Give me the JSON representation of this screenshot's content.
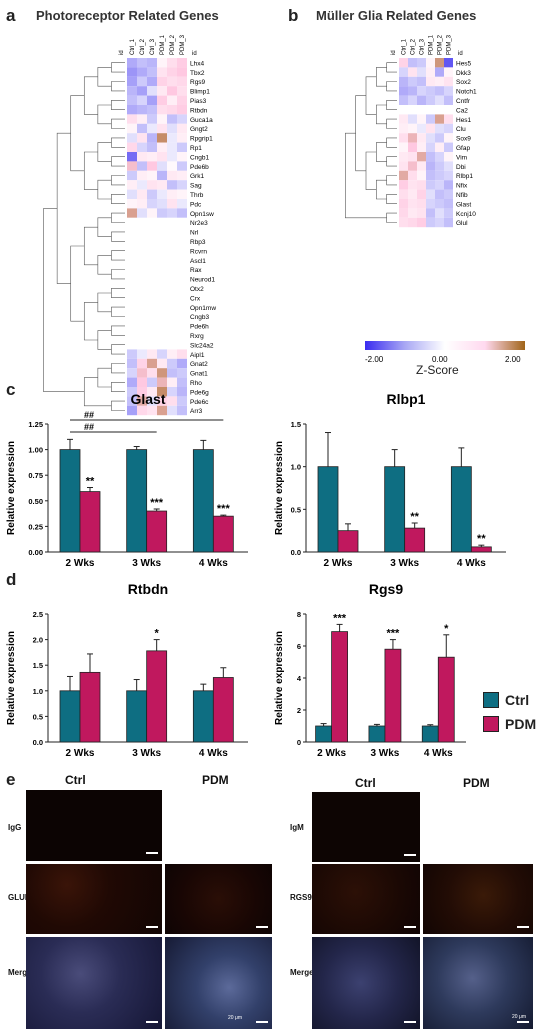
{
  "panels": {
    "a": {
      "letter": "a",
      "title": "Photoreceptor Related Genes"
    },
    "b": {
      "letter": "b",
      "title": "Müller Glia Related Genes"
    },
    "c": {
      "letter": "c"
    },
    "d": {
      "letter": "d"
    },
    "e": {
      "letter": "e"
    }
  },
  "heatmap_a": {
    "id_label": "id",
    "samples": [
      "Ctrl_1",
      "Ctrl_2",
      "Ctrl_3",
      "PDM_1",
      "PDM_2",
      "PDM_3"
    ],
    "genes": [
      "Lhx4",
      "Tbx2",
      "Rgs9",
      "Blimp1",
      "Pias3",
      "Rtbdn",
      "Guca1a",
      "Gngt2",
      "Rpgrip1",
      "Rp1",
      "Cngb1",
      "Pde6b",
      "Grk1",
      "Sag",
      "Thrb",
      "Pdc",
      "Opn1sw",
      "Nr2e3",
      "Nrl",
      "Rbp3",
      "Rcvrn",
      "Ascl1",
      "Rax",
      "Neurod1",
      "Otx2",
      "Crx",
      "Opn1mw",
      "Cngb3",
      "Pde6h",
      "Rxrg",
      "Slc24a2",
      "Aipl1",
      "Gnat2",
      "Gnat1",
      "Rho",
      "Pde6g",
      "Pde6c",
      "Arr3"
    ],
    "values": [
      [
        -0.8,
        -0.6,
        -0.7,
        0.2,
        0.6,
        0.9
      ],
      [
        -1.0,
        -0.8,
        -0.6,
        0.5,
        0.8,
        1.0
      ],
      [
        -0.9,
        -0.5,
        -0.8,
        0.8,
        0.6,
        0.7
      ],
      [
        -0.7,
        -0.9,
        -0.3,
        0.4,
        1.0,
        0.6
      ],
      [
        -0.6,
        -0.4,
        -0.9,
        0.9,
        0.3,
        0.8
      ],
      [
        -0.8,
        -0.7,
        -0.6,
        0.6,
        0.7,
        0.9
      ],
      [
        0.6,
        0.3,
        -0.5,
        0.2,
        -0.6,
        -0.4
      ],
      [
        0.2,
        -0.6,
        -0.2,
        0.5,
        -0.3,
        0.4
      ],
      [
        -0.3,
        0.5,
        -0.7,
        1.6,
        -0.2,
        0.3
      ],
      [
        0.7,
        -0.4,
        -0.6,
        0.3,
        -0.2,
        -0.5
      ],
      [
        -1.4,
        0.4,
        0.3,
        0.5,
        -0.2,
        0.2
      ],
      [
        1.1,
        -0.6,
        1.0,
        -0.3,
        0.1,
        -0.5
      ],
      [
        -0.5,
        0.3,
        0.2,
        -0.7,
        0.4,
        0.3
      ],
      [
        0.3,
        -0.2,
        0.5,
        0.4,
        -0.6,
        -0.4
      ],
      [
        -0.3,
        0.4,
        -0.5,
        -0.2,
        0.3,
        0.2
      ],
      [
        0.2,
        0.3,
        -0.4,
        -0.3,
        0.5,
        -0.2
      ],
      [
        1.4,
        -0.3,
        0.2,
        -0.5,
        -0.4,
        -0.6
      ],
      [
        0,
        0,
        0,
        0,
        0,
        0
      ],
      [
        0,
        0,
        0,
        0,
        0,
        0
      ],
      [
        0,
        0,
        0,
        0,
        0,
        0
      ],
      [
        0,
        0,
        0,
        0,
        0,
        0
      ],
      [
        0,
        0,
        0,
        0,
        0,
        0
      ],
      [
        0,
        0,
        0,
        0,
        0,
        0
      ],
      [
        0,
        0,
        0,
        0,
        0,
        0
      ],
      [
        0,
        0,
        0,
        0,
        0,
        0
      ],
      [
        0,
        0,
        0,
        0,
        0,
        0
      ],
      [
        0,
        0,
        0,
        0,
        0,
        0
      ],
      [
        0,
        0,
        0,
        0,
        0,
        0
      ],
      [
        0,
        0,
        0,
        0,
        0,
        0
      ],
      [
        0,
        0,
        0,
        0,
        0,
        0
      ],
      [
        0,
        0,
        0,
        0,
        0,
        0
      ],
      [
        -0.5,
        -0.2,
        0.4,
        -0.4,
        0.3,
        0.6
      ],
      [
        -0.6,
        0.8,
        1.4,
        0.4,
        -0.5,
        -0.8
      ],
      [
        -0.4,
        1.1,
        0.6,
        1.5,
        -0.6,
        -0.5
      ],
      [
        -0.8,
        1.0,
        -0.5,
        1.2,
        0.3,
        -0.6
      ],
      [
        -0.5,
        0.9,
        0.4,
        1.6,
        -0.4,
        -0.7
      ],
      [
        -0.6,
        1.3,
        -0.3,
        0.8,
        0.6,
        -0.5
      ],
      [
        -0.9,
        0.7,
        0.5,
        1.4,
        -0.3,
        -0.6
      ]
    ]
  },
  "heatmap_b": {
    "id_label": "id",
    "samples": [
      "Ctrl_1",
      "Ctrl_2",
      "Ctrl_3",
      "PDM_1",
      "PDM_2",
      "PDM_3"
    ],
    "genes": [
      "Hes5",
      "Dkk3",
      "Sox2",
      "Notch1",
      "Cntfr",
      "Ca2",
      "Hes1",
      "Clu",
      "Sox9",
      "Gfap",
      "Vim",
      "Dbi",
      "Rlbp1",
      "Nfix",
      "Nfib",
      "Glast",
      "Kcnj10",
      "Glul"
    ],
    "values": [
      [
        0.8,
        -0.6,
        -0.5,
        0.2,
        1.5,
        -1.6
      ],
      [
        -0.4,
        0.5,
        -0.3,
        0.3,
        -0.8,
        0.2
      ],
      [
        -0.7,
        -0.5,
        -0.6,
        0.4,
        0.3,
        0.5
      ],
      [
        -0.8,
        -0.7,
        -0.4,
        -0.5,
        -0.6,
        -0.4
      ],
      [
        -0.6,
        -0.4,
        -0.7,
        -0.5,
        -0.3,
        -0.6
      ],
      [
        0,
        0,
        0,
        0,
        0,
        0
      ],
      [
        0.4,
        -0.3,
        0.2,
        -0.5,
        1.4,
        0.6
      ],
      [
        0.3,
        0.2,
        -0.2,
        0.5,
        -0.3,
        -0.4
      ],
      [
        0.6,
        1.2,
        0.4,
        -0.3,
        -0.5,
        0.2
      ],
      [
        0.2,
        1.0,
        0.3,
        -0.4,
        0.3,
        -0.5
      ],
      [
        0.4,
        0.5,
        1.3,
        -0.6,
        -0.4,
        0.2
      ],
      [
        0.5,
        1.1,
        0.4,
        -0.7,
        -0.5,
        -0.3
      ],
      [
        1.3,
        0.6,
        0.2,
        -0.6,
        -0.5,
        -0.4
      ],
      [
        0.9,
        0.5,
        0.6,
        -0.5,
        -0.4,
        -0.7
      ],
      [
        0.6,
        0.4,
        0.8,
        -0.3,
        -0.6,
        -0.5
      ],
      [
        0.8,
        0.5,
        0.6,
        -0.4,
        -0.5,
        -0.6
      ],
      [
        0.7,
        0.4,
        0.5,
        -0.6,
        -0.3,
        -0.5
      ],
      [
        0.6,
        0.7,
        0.9,
        -0.5,
        -0.4,
        -0.6
      ]
    ]
  },
  "colorbar": {
    "min_label": "-2.00",
    "mid_label": "0.00",
    "max_label": "2.00",
    "title": "Z-Score"
  },
  "chart_data": [
    {
      "type": "bar",
      "title": "Glast",
      "ylabel": "Relative expression",
      "ylim": [
        0,
        1.25
      ],
      "yticks": [
        "0.00",
        "0.25",
        "0.50",
        "0.75",
        "1.00",
        "1.25"
      ],
      "categories": [
        "2 Wks",
        "3 Wks",
        "4 Wks"
      ],
      "series": [
        {
          "name": "Ctrl",
          "values": [
            1.0,
            1.0,
            1.0
          ],
          "err": [
            0.1,
            0.03,
            0.09
          ]
        },
        {
          "name": "PDM",
          "values": [
            0.59,
            0.4,
            0.35
          ],
          "err": [
            0.04,
            0.02,
            0.01
          ]
        }
      ],
      "significance": [
        "**",
        "***",
        "***"
      ],
      "hash_labels": [
        "##",
        "##"
      ]
    },
    {
      "type": "bar",
      "title": "Rlbp1",
      "ylabel": "Relative expression",
      "ylim": [
        0,
        1.5
      ],
      "yticks": [
        "0.0",
        "0.5",
        "1.0",
        "1.5"
      ],
      "categories": [
        "2 Wks",
        "3 Wks",
        "4 Wks"
      ],
      "series": [
        {
          "name": "Ctrl",
          "values": [
            1.0,
            1.0,
            1.0
          ],
          "err": [
            0.4,
            0.2,
            0.22
          ]
        },
        {
          "name": "PDM",
          "values": [
            0.25,
            0.28,
            0.06
          ],
          "err": [
            0.08,
            0.06,
            0.02
          ]
        }
      ],
      "significance": [
        "",
        "**",
        "**"
      ]
    },
    {
      "type": "bar",
      "title": "Rtbdn",
      "ylabel": "Relative expression",
      "ylim": [
        0,
        2.5
      ],
      "yticks": [
        "0.0",
        "0.5",
        "1.0",
        "1.5",
        "2.0",
        "2.5"
      ],
      "categories": [
        "2 Wks",
        "3 Wks",
        "4 Wks"
      ],
      "series": [
        {
          "name": "Ctrl",
          "values": [
            1.0,
            1.0,
            1.0
          ],
          "err": [
            0.28,
            0.22,
            0.13
          ]
        },
        {
          "name": "PDM",
          "values": [
            1.36,
            1.78,
            1.26
          ],
          "err": [
            0.36,
            0.22,
            0.19
          ]
        }
      ],
      "significance": [
        "",
        "*",
        ""
      ]
    },
    {
      "type": "bar",
      "title": "Rgs9",
      "ylabel": "Relative expression",
      "ylim": [
        0,
        8
      ],
      "yticks": [
        "0",
        "2",
        "4",
        "6",
        "8"
      ],
      "categories": [
        "2 Wks",
        "3 Wks",
        "4 Wks"
      ],
      "series": [
        {
          "name": "Ctrl",
          "values": [
            1.0,
            1.0,
            1.0
          ],
          "err": [
            0.15,
            0.1,
            0.08
          ]
        },
        {
          "name": "PDM",
          "values": [
            6.9,
            5.8,
            5.3
          ],
          "err": [
            0.45,
            0.6,
            1.4
          ]
        }
      ],
      "significance": [
        "***",
        "***",
        "*"
      ]
    }
  ],
  "legend": {
    "items": [
      {
        "label": "Ctrl",
        "color": "#0e6e82"
      },
      {
        "label": "PDM",
        "color": "#c0185e"
      }
    ]
  },
  "colors": {
    "ctrl": "#0e6e82",
    "pdm": "#c0185e"
  },
  "micrographs": {
    "left": {
      "col1": "Ctrl",
      "col2": "PDM",
      "rows": [
        "IgG",
        "GLUL",
        "Merge"
      ],
      "scale_label": "20 μm"
    },
    "right": {
      "col1": "Ctrl",
      "col2": "PDM",
      "rows": [
        "IgM",
        "RGS9",
        "Merge"
      ],
      "scale_label": "20 μm"
    }
  }
}
